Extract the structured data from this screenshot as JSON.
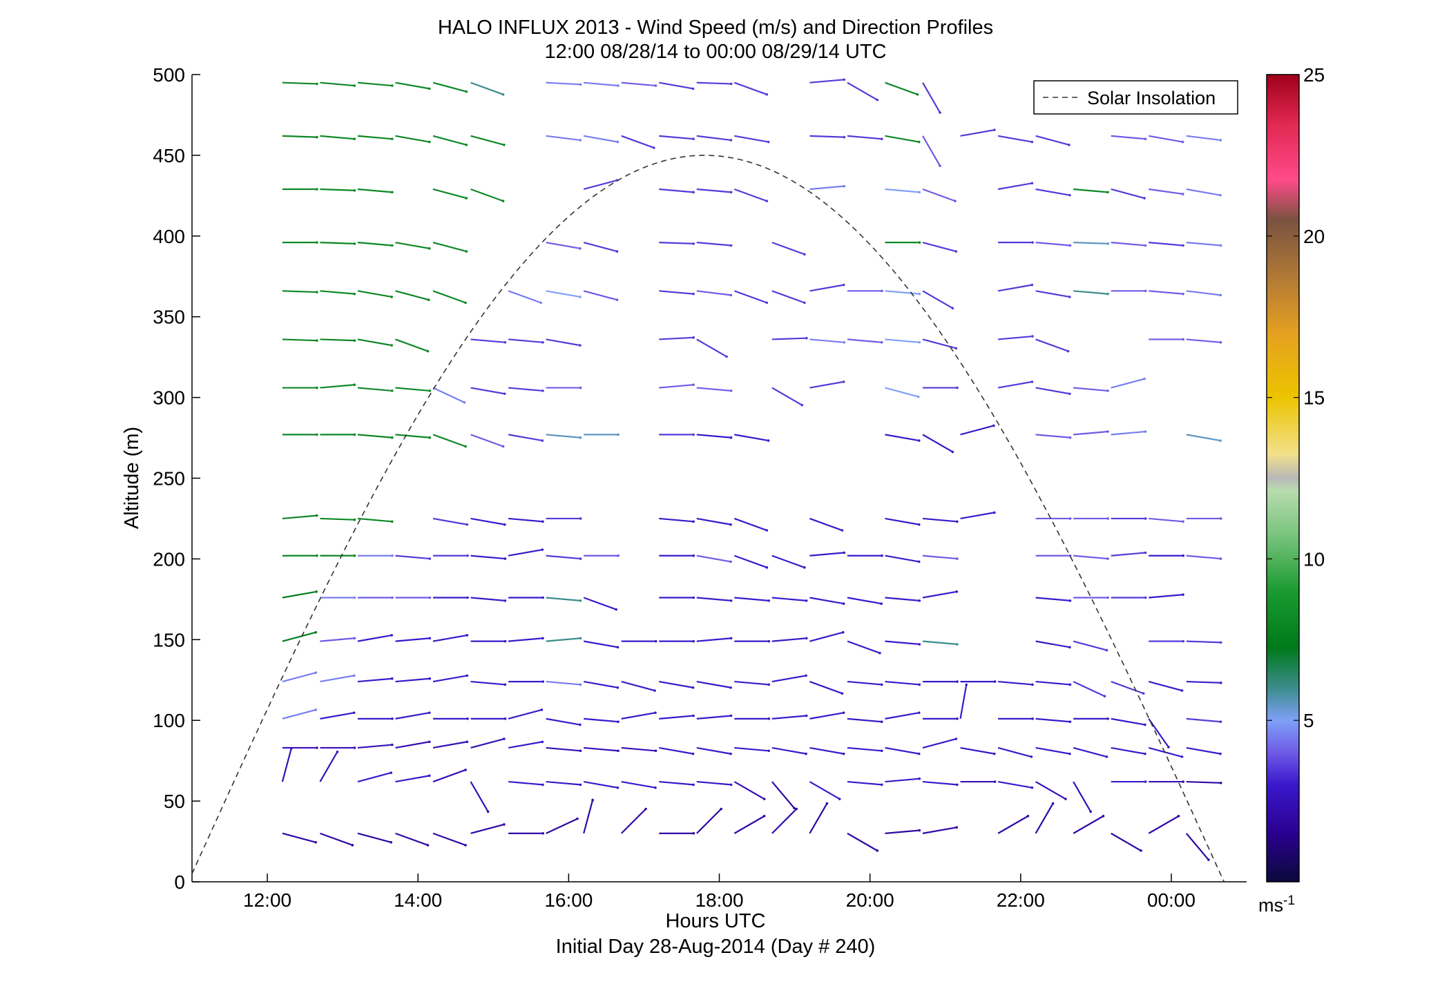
{
  "chart_data": {
    "type": "scatter",
    "title": "HALO INFLUX 2013 - Wind Speed (m/s) and Direction Profiles",
    "subtitle": "12:00 08/28/14 to 00:00 08/29/14  UTC",
    "xlabel": "Hours UTC",
    "xlabel2": "Initial Day 28-Aug-2014 (Day # 240)",
    "ylabel": "Altitude (m)",
    "xlim_hours": [
      11.0,
      25.0
    ],
    "ylim": [
      0,
      500
    ],
    "x_ticks": [
      {
        "value": 12,
        "label": "12:00"
      },
      {
        "value": 14,
        "label": "14:00"
      },
      {
        "value": 16,
        "label": "16:00"
      },
      {
        "value": 18,
        "label": "18:00"
      },
      {
        "value": 20,
        "label": "20:00"
      },
      {
        "value": 22,
        "label": "22:00"
      },
      {
        "value": 24,
        "label": "00:00"
      }
    ],
    "y_ticks": [
      0,
      50,
      100,
      150,
      200,
      250,
      300,
      350,
      400,
      450,
      500
    ],
    "colorbar": {
      "range": [
        0,
        25
      ],
      "ticks": [
        5,
        10,
        15,
        20,
        25
      ],
      "unit_label": "ms",
      "unit_exponent": "-1"
    },
    "legend": {
      "entry": "Solar Insolation",
      "style": "dashed",
      "position": "top-right"
    },
    "solar_insolation_curve": {
      "start": [
        11.0,
        5
      ],
      "peak": [
        17.8,
        450
      ],
      "end": [
        24.7,
        0
      ]
    },
    "wind_profiles": {
      "times": [
        12.2,
        12.7,
        13.2,
        13.7,
        14.2,
        14.7,
        15.2,
        15.7,
        16.2,
        16.7,
        17.2,
        17.7,
        18.2,
        18.7,
        19.2,
        19.7,
        20.2,
        20.7,
        21.2,
        21.7,
        22.2,
        22.7,
        23.2,
        23.7,
        24.2
      ],
      "altitudes": [
        30,
        62,
        83,
        101,
        124,
        149,
        176,
        202,
        225,
        277,
        306,
        336,
        366,
        396,
        429,
        462,
        495
      ],
      "speed_ms": [
        [
          2,
          2,
          2,
          2,
          2,
          2,
          2,
          2,
          2,
          2,
          2,
          2,
          2,
          2,
          2,
          2,
          2,
          2,
          2,
          2,
          2,
          2,
          2,
          2,
          2
        ],
        [
          2.5,
          2.5,
          3,
          3,
          2.5,
          2.5,
          3,
          3,
          3,
          3,
          3,
          3,
          2.5,
          2,
          3,
          3,
          3,
          3,
          2.5,
          3,
          2.5,
          2.5,
          3,
          2.5,
          2
        ],
        [
          2.5,
          2.5,
          2.5,
          2.5,
          2.5,
          2.5,
          3,
          2.5,
          2.5,
          2.5,
          3,
          3,
          3,
          3,
          3,
          3,
          3,
          3,
          3,
          3,
          3,
          3,
          3,
          3,
          3
        ],
        [
          4.5,
          3,
          3,
          3,
          3,
          3,
          3,
          3,
          3,
          3,
          3,
          3,
          3,
          3,
          3,
          3,
          3,
          3,
          3,
          3,
          3,
          3,
          3,
          3,
          3.5
        ],
        [
          4.5,
          4.5,
          3,
          3,
          3,
          3,
          3,
          4.5,
          3,
          3,
          3,
          3,
          3,
          3,
          3,
          3,
          3,
          3,
          3,
          3,
          3,
          3.5,
          3.5,
          3,
          3
        ],
        [
          7.5,
          4,
          3,
          3,
          3,
          3,
          3,
          6,
          3,
          3,
          3,
          3,
          3,
          3,
          3,
          3,
          3,
          6,
          3,
          3,
          3,
          3.5,
          3,
          3.5,
          3.5
        ],
        [
          7.5,
          4.5,
          4,
          4,
          3,
          3,
          3,
          6,
          3,
          4.5,
          3,
          3,
          3,
          3,
          3,
          3,
          3,
          3,
          3,
          3,
          3,
          4,
          3.5,
          3,
          3.5
        ],
        [
          8,
          8,
          4.5,
          3.5,
          3.5,
          3,
          3,
          3.5,
          4,
          3,
          3,
          4,
          3,
          3,
          3,
          3,
          3,
          4,
          3,
          3,
          4,
          4,
          3.5,
          3,
          4
        ],
        [
          8,
          8,
          8,
          3.5,
          3.5,
          3,
          3,
          3.5,
          4.5,
          3,
          3,
          3,
          3,
          3,
          3,
          3,
          3,
          3,
          3,
          3,
          4,
          4,
          3.5,
          4,
          4
        ],
        [
          8,
          8,
          8,
          8,
          8,
          4,
          3.5,
          5.5,
          5.5,
          3.5,
          3.5,
          3,
          3,
          3,
          3.5,
          4,
          3,
          3,
          3,
          3.5,
          4,
          4,
          4.5,
          4,
          5.5
        ],
        [
          8,
          8,
          8,
          8,
          4.5,
          3.5,
          3.5,
          4,
          4.5,
          3.5,
          4,
          4,
          3.5,
          3.5,
          3.5,
          4,
          5,
          3.5,
          3.5,
          3.5,
          3.5,
          4,
          4.5,
          4,
          4
        ],
        [
          8,
          8,
          8,
          8,
          8,
          3.5,
          3.5,
          3.5,
          5,
          3.5,
          3.5,
          3.5,
          3.5,
          3.5,
          4.5,
          4,
          5,
          3.5,
          3.5,
          3.5,
          3.5,
          4,
          4,
          4,
          4
        ],
        [
          8,
          8,
          8,
          8,
          8,
          4.5,
          4.5,
          5,
          4,
          3.5,
          3.5,
          4,
          3.5,
          3.5,
          3.5,
          4,
          5,
          3.5,
          3.5,
          3.5,
          3.5,
          6,
          4,
          4,
          4.5
        ],
        [
          8,
          8,
          8,
          8,
          8,
          5.5,
          4.5,
          4,
          3.5,
          3.5,
          3.5,
          3.5,
          3.5,
          3.5,
          4.5,
          4.5,
          8,
          3.5,
          3.5,
          3.5,
          4,
          5.5,
          4,
          3.5,
          4.5
        ],
        [
          8,
          8,
          8,
          8,
          8,
          8,
          5,
          4.5,
          3.5,
          3.5,
          3.5,
          3.5,
          3.5,
          3.5,
          4.5,
          4.5,
          5,
          4,
          3.5,
          3.5,
          3.5,
          8,
          3.5,
          4,
          4.5
        ],
        [
          8,
          8,
          8,
          8,
          8,
          8,
          5.5,
          4.5,
          4.5,
          3.5,
          3.5,
          3.5,
          3.5,
          3.5,
          3.5,
          3.5,
          8,
          4,
          3.5,
          3.5,
          3.5,
          8,
          4,
          4,
          4.5
        ],
        [
          8,
          8,
          8,
          8,
          8,
          6,
          5,
          4.5,
          4.5,
          4,
          3.5,
          3.5,
          3.5,
          3.5,
          3.5,
          3.5,
          8,
          3.5,
          4.5,
          3.5,
          3.5,
          4,
          4,
          4,
          4.5
        ]
      ],
      "bearing_deg": [
        [
          105,
          110,
          105,
          110,
          110,
          75,
          90,
          65,
          15,
          45,
          90,
          45,
          60,
          45,
          30,
          120,
          85,
          80,
          0,
          60,
          30,
          60,
          120,
          60,
          140
        ],
        [
          15,
          30,
          75,
          80,
          70,
          150,
          95,
          95,
          100,
          100,
          95,
          95,
          120,
          140,
          120,
          95,
          85,
          95,
          90,
          100,
          120,
          150,
          90,
          90,
          92
        ],
        [
          90,
          90,
          85,
          80,
          80,
          75,
          80,
          95,
          95,
          95,
          100,
          100,
          95,
          100,
          100,
          95,
          100,
          75,
          100,
          105,
          100,
          105,
          100,
          105,
          100
        ],
        [
          75,
          80,
          90,
          80,
          90,
          90,
          75,
          100,
          95,
          80,
          85,
          85,
          90,
          85,
          80,
          95,
          80,
          90,
          10,
          90,
          95,
          90,
          100,
          145,
          95
        ],
        [
          75,
          80,
          85,
          85,
          80,
          95,
          90,
          95,
          100,
          105,
          100,
          100,
          95,
          80,
          110,
          95,
          95,
          90,
          90,
          95,
          95,
          115,
          110,
          105,
          92
        ],
        [
          75,
          85,
          80,
          85,
          80,
          90,
          85,
          85,
          100,
          90,
          90,
          85,
          90,
          85,
          75,
          110,
          95,
          95,
          0,
          0,
          100,
          105,
          0,
          90,
          92
        ],
        [
          80,
          90,
          90,
          90,
          90,
          95,
          90,
          95,
          110,
          0,
          90,
          95,
          95,
          95,
          100,
          100,
          95,
          80,
          0,
          0,
          95,
          90,
          90,
          85,
          0
        ],
        [
          90,
          90,
          90,
          95,
          90,
          95,
          80,
          95,
          90,
          0,
          90,
          100,
          110,
          110,
          85,
          90,
          100,
          95,
          0,
          0,
          90,
          95,
          85,
          90,
          95
        ],
        [
          85,
          92,
          95,
          0,
          100,
          100,
          95,
          90,
          0,
          0,
          95,
          100,
          110,
          0,
          110,
          0,
          100,
          95,
          80,
          0,
          90,
          90,
          90,
          95,
          90
        ],
        [
          90,
          90,
          95,
          95,
          110,
          110,
          100,
          95,
          90,
          0,
          90,
          95,
          100,
          0,
          0,
          0,
          100,
          120,
          75,
          0,
          95,
          85,
          85,
          0,
          100
        ],
        [
          90,
          85,
          95,
          95,
          115,
          100,
          95,
          90,
          0,
          0,
          85,
          95,
          0,
          120,
          80,
          0,
          105,
          90,
          0,
          80,
          100,
          95,
          75,
          0,
          0
        ],
        [
          92,
          92,
          100,
          110,
          0,
          95,
          95,
          100,
          0,
          0,
          87,
          120,
          0,
          88,
          95,
          95,
          95,
          105,
          0,
          85,
          110,
          0,
          0,
          90,
          95
        ],
        [
          92,
          95,
          100,
          105,
          110,
          0,
          110,
          100,
          105,
          0,
          95,
          97,
          110,
          110,
          80,
          90,
          95,
          120,
          0,
          80,
          100,
          95,
          90,
          95,
          97
        ],
        [
          90,
          92,
          95,
          100,
          105,
          0,
          0,
          100,
          105,
          0,
          92,
          95,
          0,
          110,
          0,
          0,
          90,
          105,
          0,
          90,
          95,
          92,
          95,
          95,
          95
        ],
        [
          90,
          92,
          95,
          0,
          105,
          110,
          0,
          0,
          75,
          0,
          95,
          95,
          110,
          0,
          85,
          0,
          95,
          110,
          0,
          80,
          100,
          95,
          105,
          98,
          100
        ],
        [
          92,
          95,
          95,
          100,
          105,
          105,
          0,
          97,
          100,
          110,
          95,
          97,
          100,
          0,
          92,
          95,
          100,
          150,
          80,
          100,
          105,
          0,
          95,
          100,
          97
        ],
        [
          92,
          95,
          95,
          100,
          105,
          110,
          0,
          93,
          95,
          95,
          100,
          92,
          110,
          0,
          85,
          120,
          110,
          150,
          0,
          0,
          110,
          0,
          0,
          92,
          95
        ]
      ]
    }
  }
}
